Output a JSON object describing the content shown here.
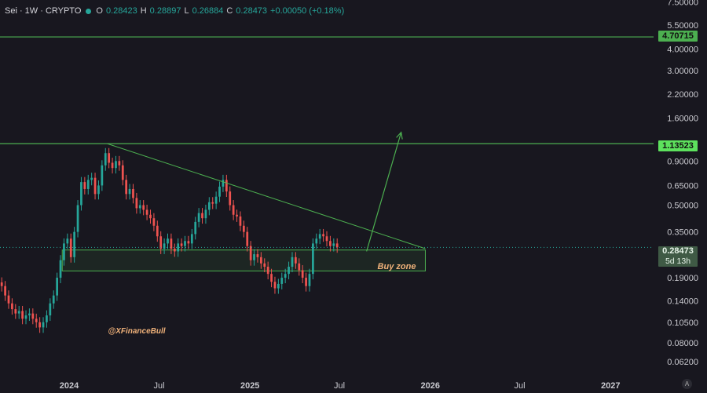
{
  "header": {
    "symbol": "Sei · 1W · CRYPTO",
    "open_label": "O",
    "open": "0.28423",
    "high_label": "H",
    "high": "0.28897",
    "low_label": "L",
    "low": "0.26884",
    "close_label": "C",
    "close": "0.28473",
    "change": "+0.00050 (+0.18%)"
  },
  "watermark": "@XFinanceBull",
  "zone_label": "Buy zone",
  "auto_label": "A",
  "price_tags": {
    "upper_resistance": "4.70715",
    "resistance": "1.13523",
    "current_price": "0.28473",
    "countdown": "5d 13h"
  },
  "colors": {
    "background": "#18171f",
    "bullish": "#26a69a",
    "bearish": "#ef5350",
    "annotation": "#4caf50",
    "zone_label": "#f0b27a",
    "axis_text": "#c9c9cf"
  },
  "chart_data": {
    "type": "candlestick",
    "symbol": "Sei",
    "timeframe": "1W",
    "y_scale": "log",
    "ylim": [
      0.052,
      7.7
    ],
    "y_ticks": [
      "7.50000",
      "5.50000",
      "4.00000",
      "3.00000",
      "2.20000",
      "1.60000",
      "0.90000",
      "0.65000",
      "0.50000",
      "0.35000",
      "0.19000",
      "0.14000",
      "0.10500",
      "0.08000",
      "0.06200"
    ],
    "x_ticks": [
      "2024",
      "Jul",
      "2025",
      "Jul",
      "2026",
      "Jul",
      "2027"
    ],
    "x_range": [
      "2023-08-14",
      "2027-03-29"
    ],
    "candles": {
      "start": "2023-08-14",
      "interval_days": 7,
      "closes": [
        0.17,
        0.15,
        0.135,
        0.125,
        0.118,
        0.122,
        0.11,
        0.115,
        0.118,
        0.11,
        0.105,
        0.098,
        0.105,
        0.115,
        0.135,
        0.15,
        0.19,
        0.24,
        0.3,
        0.32,
        0.25,
        0.35,
        0.5,
        0.68,
        0.62,
        0.7,
        0.72,
        0.58,
        0.65,
        0.85,
        1.0,
        0.88,
        0.82,
        0.9,
        0.85,
        0.7,
        0.58,
        0.62,
        0.55,
        0.48,
        0.5,
        0.47,
        0.44,
        0.42,
        0.38,
        0.33,
        0.28,
        0.3,
        0.32,
        0.28,
        0.27,
        0.3,
        0.29,
        0.31,
        0.3,
        0.34,
        0.4,
        0.45,
        0.42,
        0.47,
        0.52,
        0.51,
        0.56,
        0.64,
        0.7,
        0.6,
        0.5,
        0.44,
        0.43,
        0.38,
        0.35,
        0.29,
        0.24,
        0.26,
        0.25,
        0.23,
        0.22,
        0.2,
        0.18,
        0.165,
        0.175,
        0.19,
        0.2,
        0.22,
        0.25,
        0.23,
        0.21,
        0.19,
        0.17,
        0.2,
        0.3,
        0.32,
        0.34,
        0.33,
        0.31,
        0.29,
        0.3,
        0.285
      ],
      "wick": 0.07
    },
    "horizontal_lines": [
      {
        "price": 4.70715
      },
      {
        "price": 1.13523
      }
    ],
    "trendline": {
      "from": {
        "date": "2024-03-18",
        "price": 1.13523
      },
      "to": {
        "date": "2025-12-22",
        "price": 0.28
      }
    },
    "buy_zone": {
      "from": "2023-12-18",
      "to": "2025-12-22",
      "low": 0.208,
      "high": 0.275
    },
    "projection_arrow": {
      "from": {
        "date": "2025-08-25",
        "price": 0.27
      },
      "to": {
        "date": "2025-11-03",
        "price": 1.32
      }
    },
    "current_price": 0.28473
  }
}
